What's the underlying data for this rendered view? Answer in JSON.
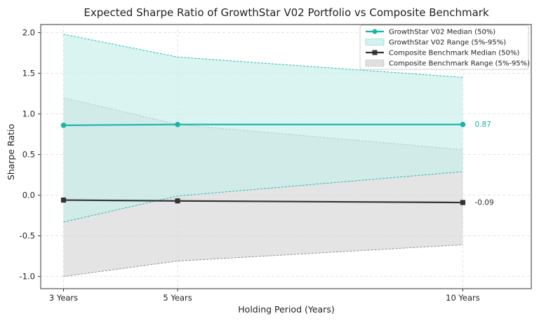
{
  "chart_data": {
    "type": "line",
    "title": "Expected Sharpe Ratio of GrowthStar V02 Portfolio vs Composite Benchmark",
    "xlabel": "Holding Period (Years)",
    "ylabel": "Sharpe Ratio",
    "x": [
      3,
      5,
      10
    ],
    "x_tick_labels": [
      "3 Years",
      "5 Years",
      "10 Years"
    ],
    "xlim": [
      2.6,
      11.2
    ],
    "ylim": [
      -1.15,
      2.1
    ],
    "yticks": [
      2.0,
      1.5,
      1.0,
      0.5,
      0.0,
      -0.5,
      -1.0
    ],
    "ytick_labels": [
      "2.0",
      "1.5",
      "1.0",
      "0.5",
      "0.0",
      "-0.5",
      "-1.0"
    ],
    "grid": true,
    "legend_position": "top-right",
    "series": [
      {
        "name": "GrowthStar V02 Median (50%)",
        "kind": "line",
        "marker": "circle",
        "color": "#19b5a8",
        "values": [
          0.86,
          0.87,
          0.87
        ],
        "end_label": "0.87"
      },
      {
        "name": "GrowthStar V02 Range (5%-95%)",
        "kind": "band",
        "color": "#19b5a8",
        "fill": "#c4eeea",
        "upper": [
          1.98,
          1.7,
          1.45
        ],
        "lower": [
          -0.33,
          -0.01,
          0.29
        ]
      },
      {
        "name": "Composite Benchmark Median (50%)",
        "kind": "line",
        "marker": "square",
        "color": "#333333",
        "values": [
          -0.06,
          -0.07,
          -0.09
        ],
        "end_label": "-0.09"
      },
      {
        "name": "Composite Benchmark Range (5%-95%)",
        "kind": "band",
        "color": "#888888",
        "fill": "#d6d6d6",
        "upper": [
          1.2,
          0.87,
          0.56
        ],
        "lower": [
          -1.0,
          -0.81,
          -0.61
        ]
      }
    ]
  }
}
